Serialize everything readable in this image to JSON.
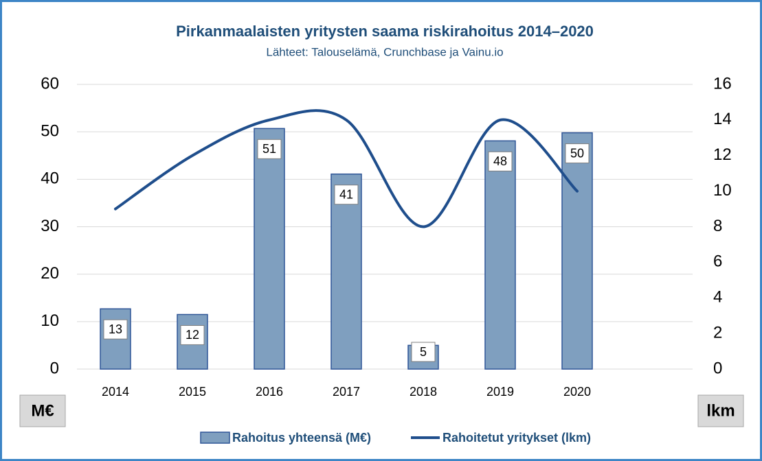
{
  "chart_data": {
    "type": "bar",
    "title": "Pirkanmaalaisten yritysten saama riskirahoitus 2014–2020",
    "subtitle": "Lähteet: Talouselämä, Crunchbase ja Vainu.io",
    "y_label": "M€",
    "y2_label": "lkm",
    "categories": [
      "2014",
      "2015",
      "2016",
      "2017",
      "2018",
      "2019",
      "2020",
      null
    ],
    "series": [
      {
        "name": "Rahoitus yhteensä (M€)",
        "type": "bar",
        "color": "#7f9fbf",
        "edge": "#2f5597",
        "values": [
          12.7,
          11.5,
          50.7,
          41.1,
          5.0,
          48.1,
          49.8,
          null
        ],
        "value_labels": [
          "13",
          "12",
          "51",
          "41",
          "5",
          "48",
          "50",
          null
        ]
      },
      {
        "name": "Rahoitetut yritykset (lkm)",
        "type": "line",
        "axis": "y2",
        "color": "#1f4e8c",
        "values": [
          9,
          12,
          14,
          14,
          8,
          14,
          10,
          null
        ]
      }
    ],
    "ylim": [
      0,
      60
    ],
    "yticks": [
      0,
      10,
      20,
      30,
      40,
      50,
      60
    ],
    "y2lim": [
      0,
      16
    ],
    "y2ticks": [
      0,
      2,
      4,
      6,
      8,
      10,
      12,
      14,
      16
    ],
    "grid": true,
    "legend": "bottom"
  }
}
